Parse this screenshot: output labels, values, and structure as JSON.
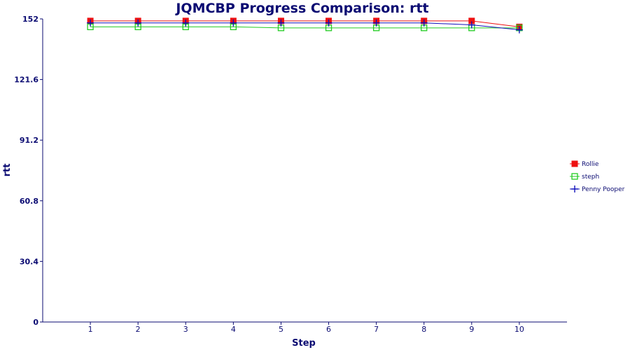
{
  "chart_data": {
    "type": "line",
    "title": "JQMCBP Progress Comparison: rtt",
    "xlabel": "Step",
    "ylabel": "rtt",
    "x": [
      1,
      2,
      3,
      4,
      5,
      6,
      7,
      8,
      9,
      10
    ],
    "xlim": [
      0,
      11
    ],
    "ylim": [
      0,
      152
    ],
    "yticks": [
      0,
      30.4,
      60.8,
      91.2,
      121.6,
      152
    ],
    "ytick_labels": [
      "0",
      "30.4",
      "60.8",
      "91.2",
      "121.6",
      "152"
    ],
    "grid": false,
    "legend_position": "right",
    "series": [
      {
        "name": "Rollie",
        "color": "#ee1111",
        "marker": "filled-square",
        "values": [
          151,
          151,
          151,
          151,
          151,
          151,
          151,
          151,
          151,
          148
        ]
      },
      {
        "name": "steph",
        "color": "#22cc22",
        "marker": "open-square",
        "values": [
          148,
          148,
          148,
          148,
          147.5,
          147.5,
          147.5,
          147.5,
          147.5,
          147.5
        ]
      },
      {
        "name": "Penny Pooper",
        "color": "#1111bb",
        "marker": "plus",
        "values": [
          150,
          150,
          150,
          150,
          150,
          150,
          150,
          150,
          149,
          146.5
        ]
      }
    ]
  }
}
